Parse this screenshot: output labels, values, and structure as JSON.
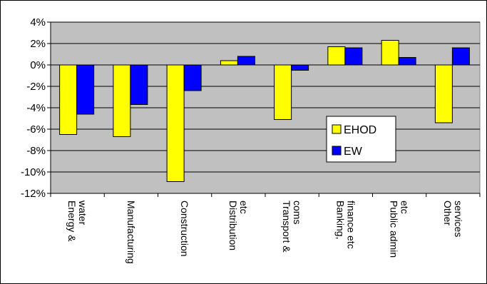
{
  "chart_data": {
    "type": "bar",
    "categories": [
      [
        "Energy &",
        "water"
      ],
      [
        "Manufacturing"
      ],
      [
        "Construction"
      ],
      [
        "Distribution",
        "etc"
      ],
      [
        "Transport &",
        "coms"
      ],
      [
        "Banking,",
        "finance etc"
      ],
      [
        "Public admin",
        "etc"
      ],
      [
        "Other",
        "services"
      ]
    ],
    "series": [
      {
        "name": "EHOD",
        "color": "#FFFF00",
        "values": [
          -6.5,
          -6.7,
          -10.9,
          0.4,
          -5.1,
          1.7,
          2.3,
          -5.4
        ]
      },
      {
        "name": "EW",
        "color": "#0000FF",
        "values": [
          -4.6,
          -3.7,
          -2.4,
          0.8,
          -0.5,
          1.6,
          0.7,
          1.6
        ]
      }
    ],
    "ylim": [
      -12,
      4
    ],
    "yticks": [
      4,
      2,
      0,
      -2,
      -4,
      -6,
      -8,
      -10,
      -12
    ],
    "ytick_labels": [
      "4%",
      "2%",
      "0%",
      "-2%",
      "-4%",
      "-6%",
      "-8%",
      "-10%",
      "-12%"
    ],
    "grid": true,
    "plot_background": "#C0C0C0",
    "legend": "inside-right"
  }
}
